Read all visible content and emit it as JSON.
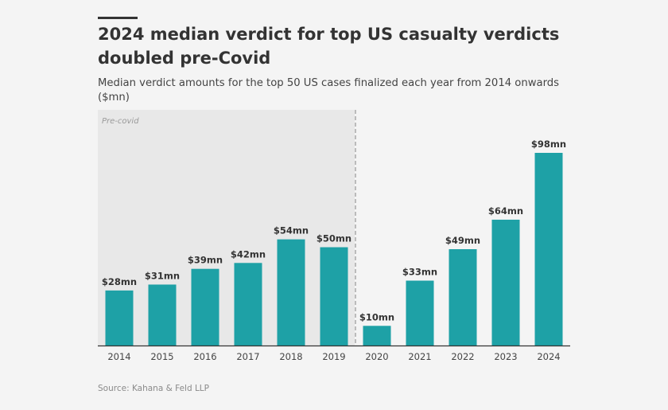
{
  "header": {
    "title": "2024 median verdict for top US casualty verdicts doubled pre-Covid",
    "subtitle": "Median verdict amounts for the top 50 US cases finalized each year from 2014 onwards ($mn)"
  },
  "footer": {
    "source": "Source: Kahana & Feld LLP"
  },
  "colors": {
    "bar": "#1ea1a6",
    "shaded_region": "#e8e8e8",
    "axis": "#333333",
    "divider": "#bbbbbb"
  },
  "chart_data": {
    "type": "bar",
    "title": "2024 median verdict for top US casualty verdicts doubled pre-Covid",
    "subtitle": "Median verdict amounts for the top 50 US cases finalized each year from 2014 onwards ($mn)",
    "xlabel": "",
    "ylabel": "",
    "categories": [
      "2014",
      "2015",
      "2016",
      "2017",
      "2018",
      "2019",
      "2020",
      "2021",
      "2022",
      "2023",
      "2024"
    ],
    "values": [
      28,
      31,
      39,
      42,
      54,
      50,
      10,
      33,
      49,
      64,
      98
    ],
    "data_labels": [
      "$28mn",
      "$31mn",
      "$39mn",
      "$42mn",
      "$54mn",
      "$50mn",
      "$10mn",
      "$33mn",
      "$49mn",
      "$64mn",
      "$98mn"
    ],
    "ylim": [
      0,
      98
    ],
    "grid": false,
    "legend": null,
    "annotations": [
      {
        "text": "Pre-covid",
        "type": "shaded-region",
        "from": "2014",
        "to": "2019",
        "divider": "dashed line between 2019 and 2020"
      }
    ],
    "source": "Source: Kahana & Feld LLP"
  }
}
